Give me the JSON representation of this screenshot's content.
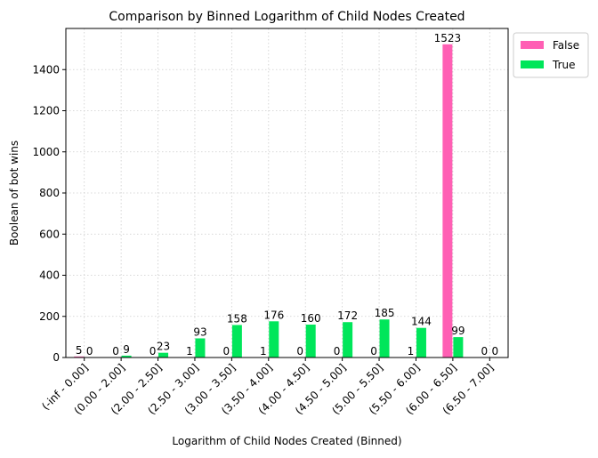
{
  "chart_data": {
    "type": "bar",
    "title": "Comparison by Binned Logarithm of Child Nodes Created",
    "xlabel": "Logarithm of Child Nodes Created (Binned)",
    "ylabel": "Boolean of bot wins",
    "categories": [
      "(-inf -  0.00]",
      "(0.00 -  2.00]",
      "(2.00 -  2.50]",
      "(2.50 -  3.00]",
      "(3.00 -  3.50]",
      "(3.50 -  4.00]",
      "(4.00 -  4.50]",
      "(4.50 -  5.00]",
      "(5.00 -  5.50]",
      "(5.50 -  6.00]",
      "(6.00 -  6.50]",
      "(6.50 -  7.00]"
    ],
    "series": [
      {
        "name": "False",
        "color": "#ff5fb4",
        "values": [
          5,
          0,
          0,
          1,
          0,
          1,
          0,
          0,
          0,
          1,
          1523,
          0
        ]
      },
      {
        "name": "True",
        "color": "#00e65a",
        "values": [
          0,
          9,
          23,
          93,
          158,
          176,
          160,
          172,
          185,
          144,
          99,
          0
        ]
      }
    ],
    "ylim": [
      0,
      1600
    ],
    "yticks": [
      0,
      200,
      400,
      600,
      800,
      1000,
      1200,
      1400
    ],
    "grid": true,
    "legend_position": "outside-top-right",
    "data_labels": true
  }
}
